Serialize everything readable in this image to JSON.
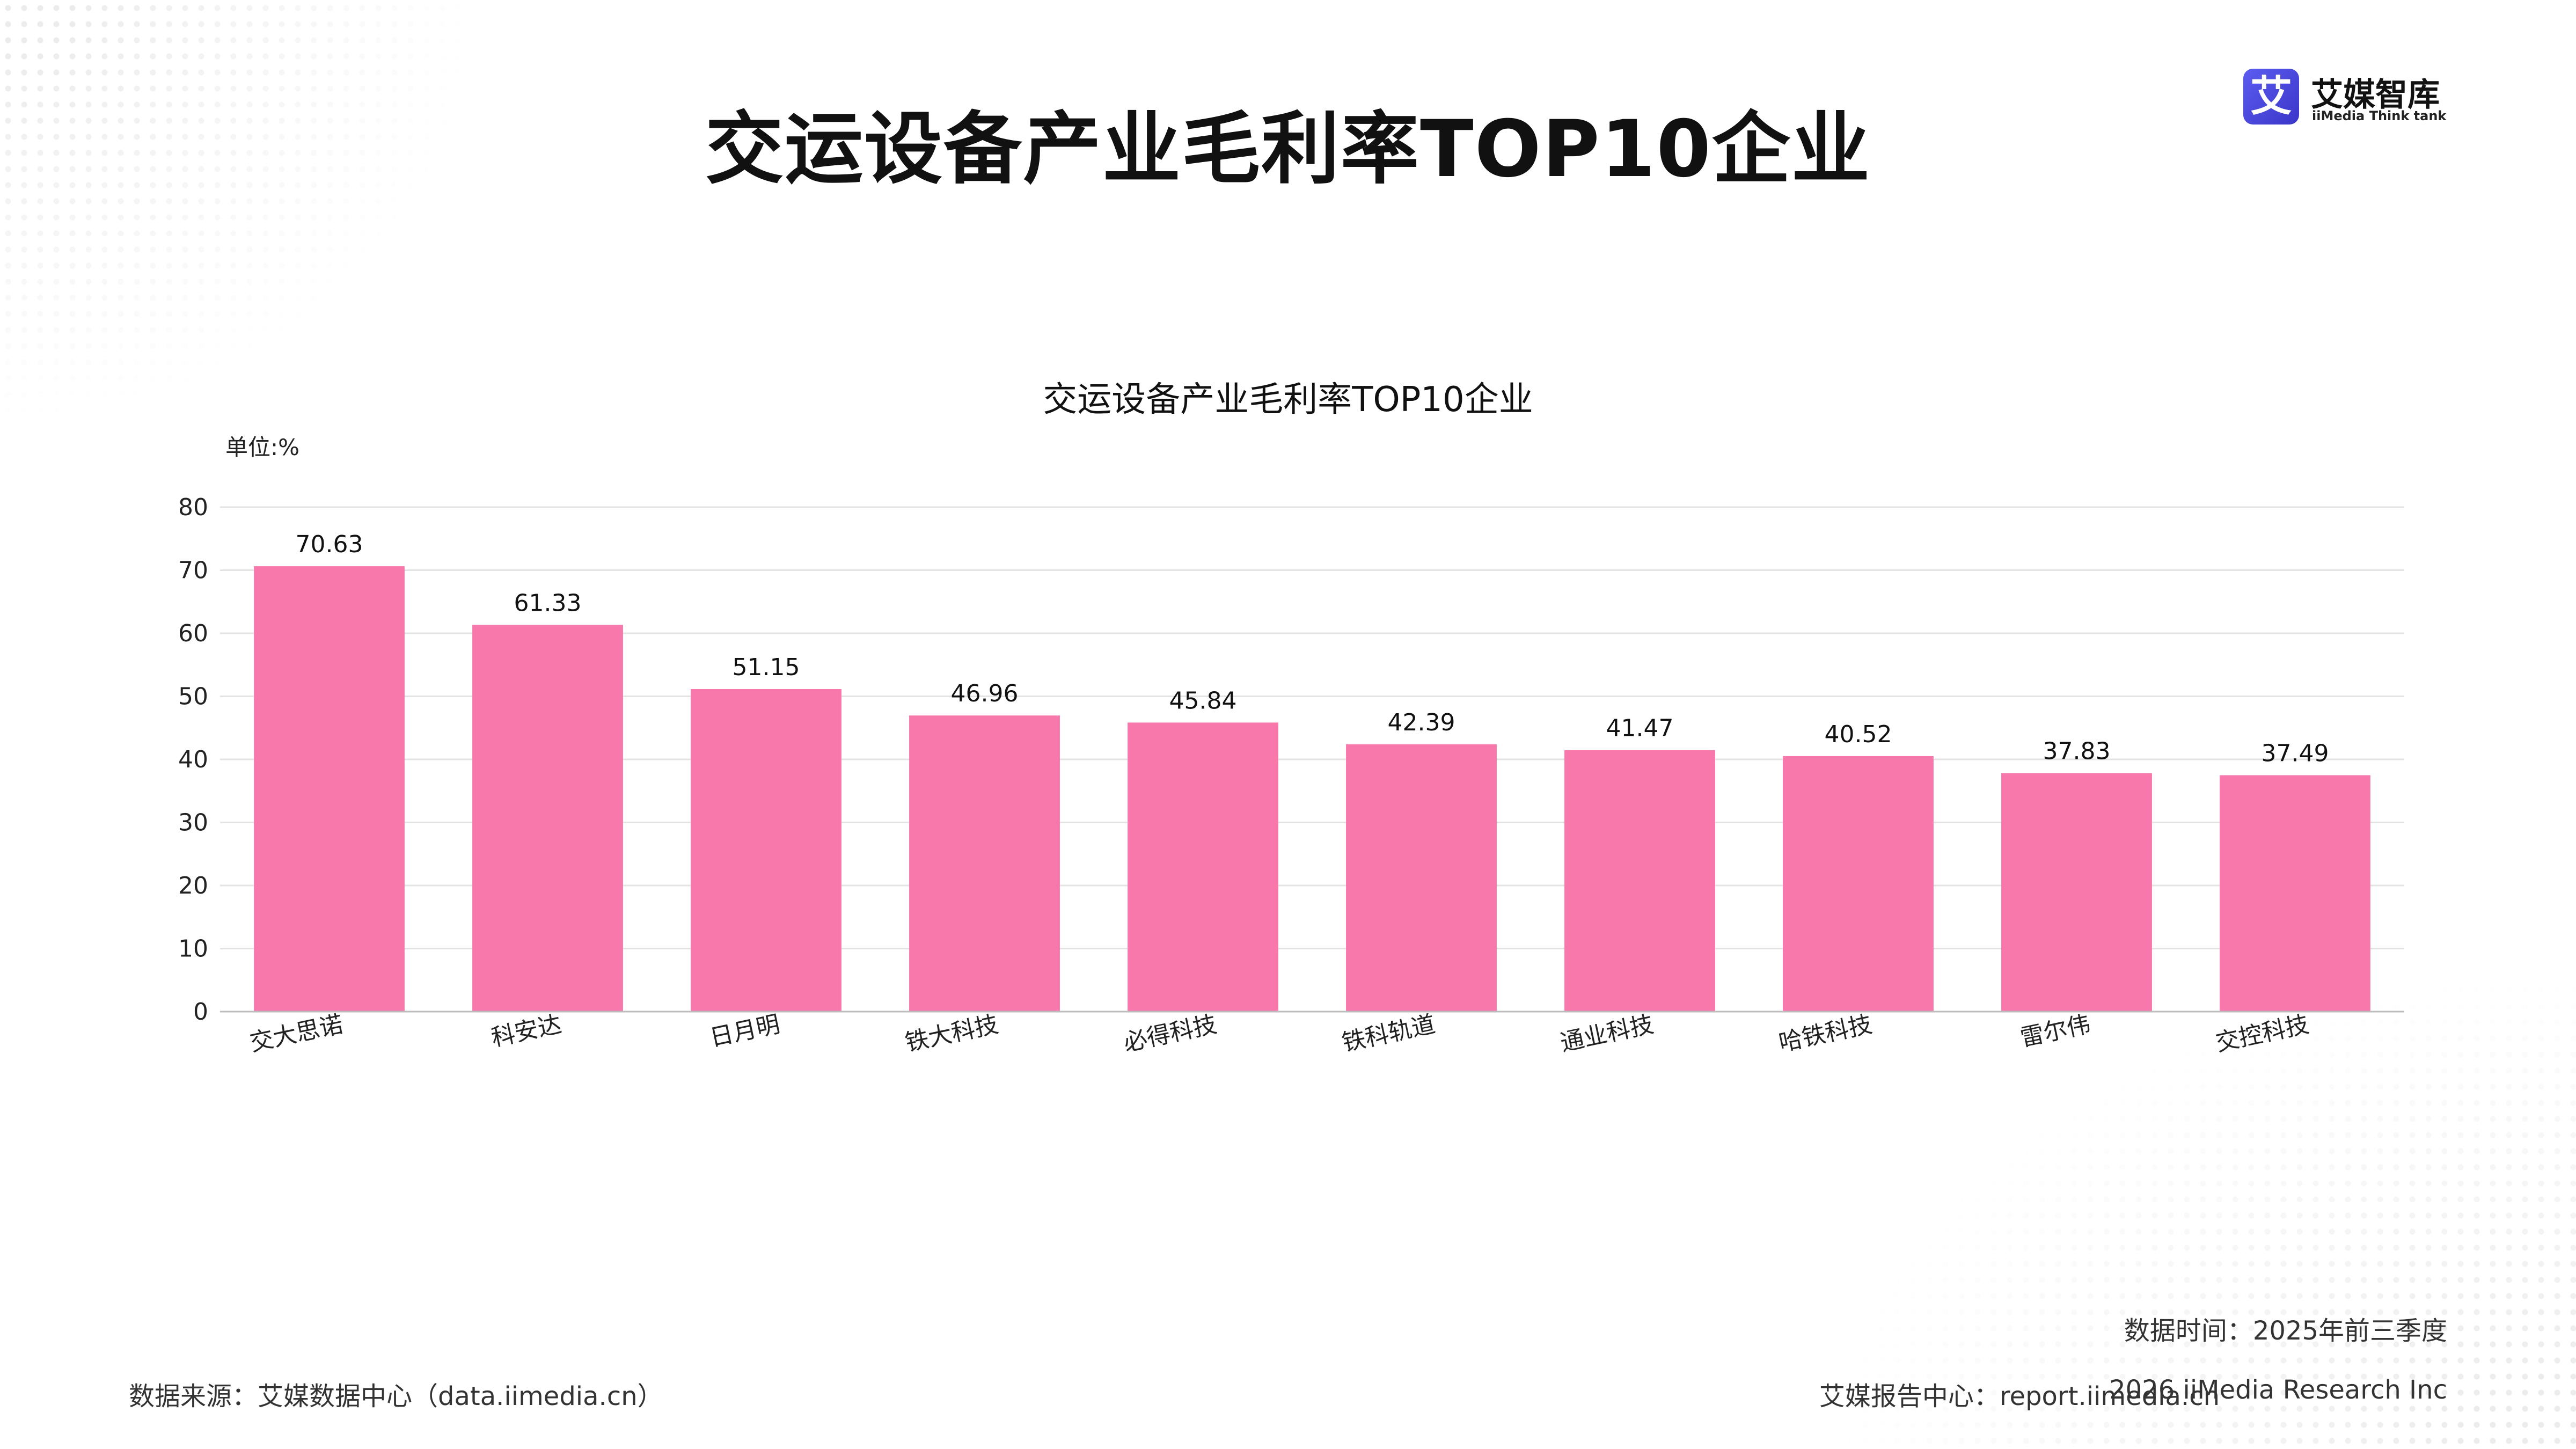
{
  "header": {
    "title": "交运设备产业毛利率TOP10企业",
    "logo": {
      "glyph": "艾",
      "name": "艾媒智库",
      "subtitle": "iiMedia Think tank"
    }
  },
  "chart_data": {
    "type": "bar",
    "title": "交运设备产业毛利率TOP10企业",
    "unit_label": "单位:%",
    "categories": [
      "交大思诺",
      "科安达",
      "日月明",
      "铁大科技",
      "必得科技",
      "铁科轨道",
      "通业科技",
      "哈铁科技",
      "雷尔伟",
      "交控科技"
    ],
    "values": [
      70.63,
      61.33,
      51.15,
      46.96,
      45.84,
      42.39,
      41.47,
      40.52,
      37.83,
      37.49
    ],
    "data_labels": [
      "70.63",
      "61.33",
      "51.15",
      "46.96",
      "45.84",
      "42.39",
      "41.47",
      "40.52",
      "37.83",
      "37.49"
    ],
    "ylim": [
      0,
      80
    ],
    "yticks": [
      "0",
      "10",
      "20",
      "30",
      "40",
      "50",
      "60",
      "70",
      "80"
    ],
    "grid": true,
    "bar_color": "#f878ab",
    "grid_color": "#e3e3e3",
    "axis_color": "#bdbdbd"
  },
  "footer": {
    "time": "数据时间：2025年前三季度",
    "source": "数据来源：艾媒数据中心（data.iimedia.cn）",
    "report_center": "艾媒报告中心：report.iimedia.cn",
    "copyright": "2026 iiMedia Research Inc"
  }
}
